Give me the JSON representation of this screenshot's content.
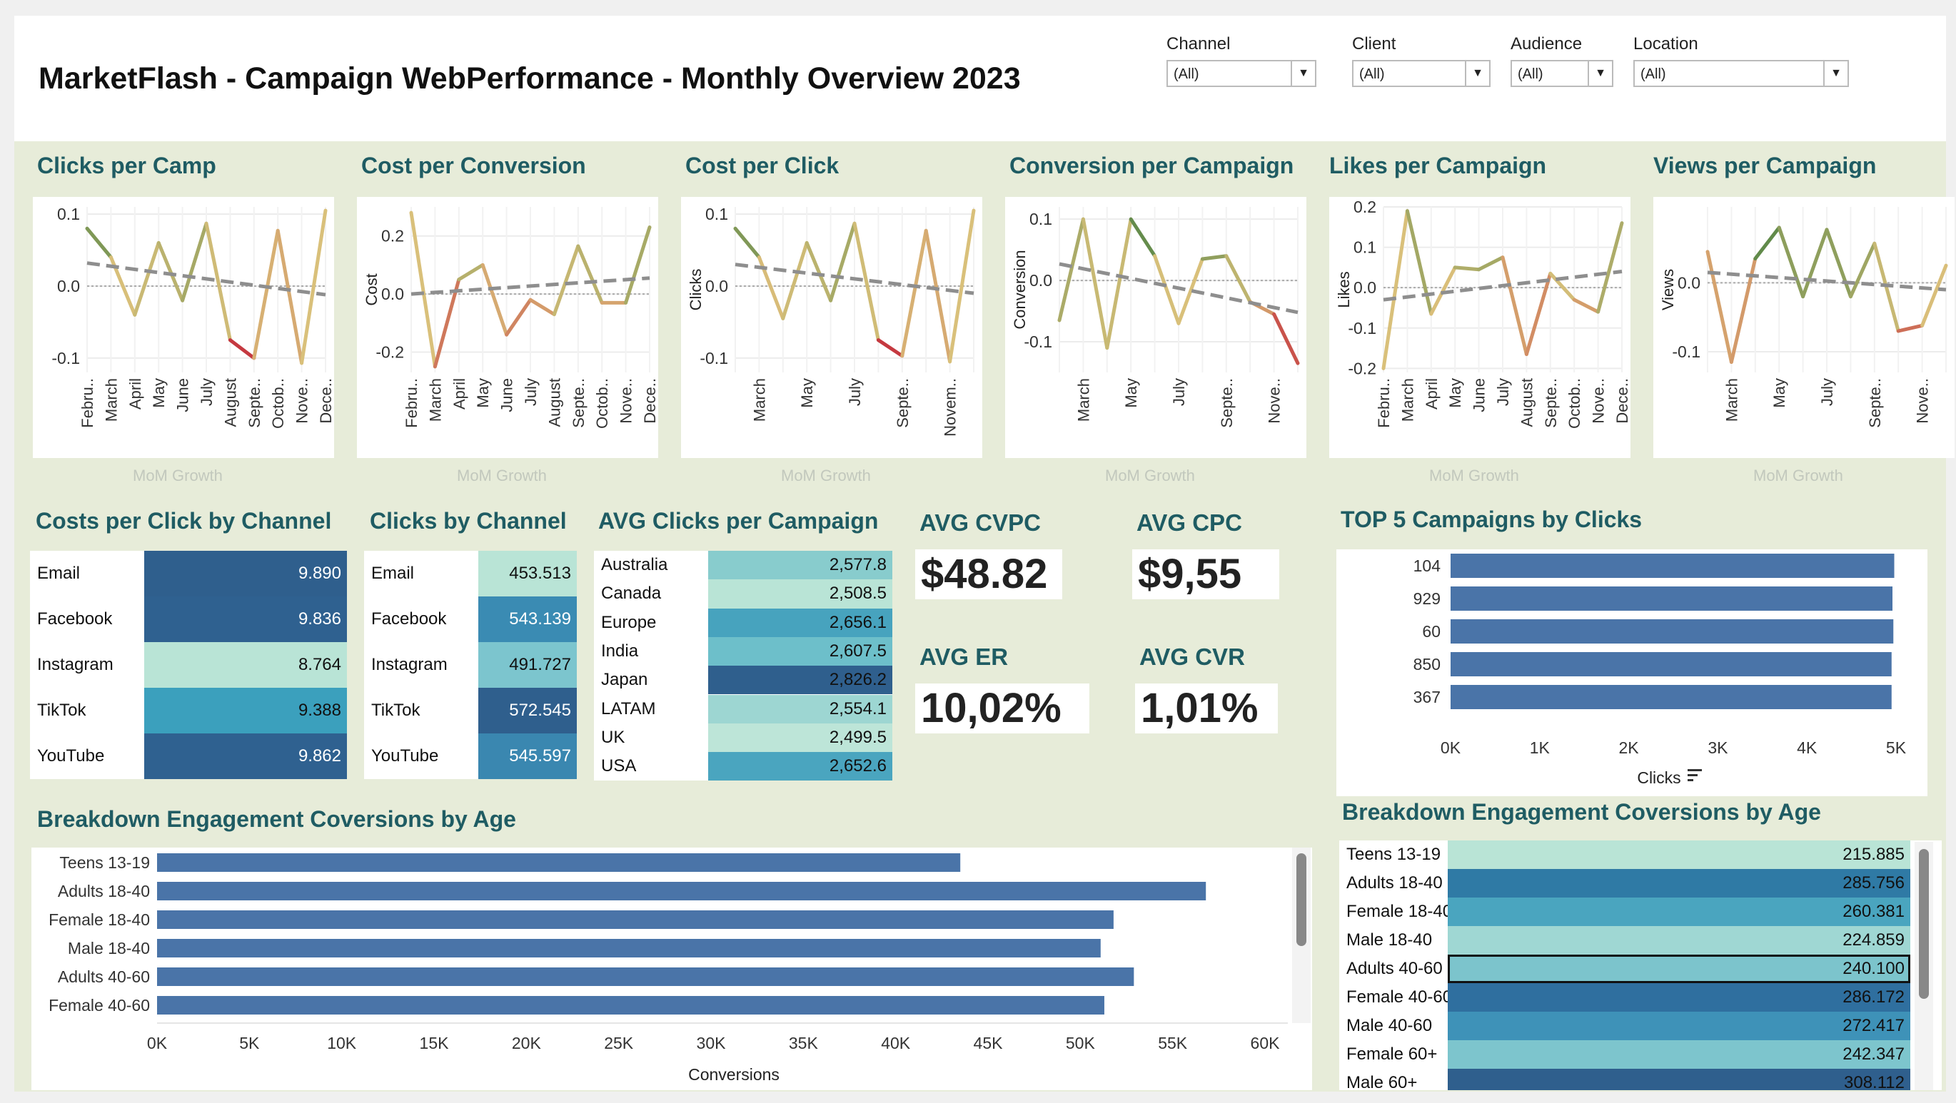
{
  "title": "MarketFlash - Campaign WebPerformance - Monthly Overview 2023",
  "filters": [
    {
      "label": "Channel",
      "value": "(All)"
    },
    {
      "label": "Client",
      "value": "(All)"
    },
    {
      "label": "Audience",
      "value": "(All)"
    },
    {
      "label": "Location",
      "value": "(All)"
    }
  ],
  "mini_charts_footer": "MoM Growth",
  "chart_data": [
    {
      "type": "line",
      "title": "Clicks per Camp",
      "ylabel": "",
      "ylim": [
        -0.12,
        0.11
      ],
      "yticks": [
        0.1,
        0.0,
        -0.1
      ],
      "ytick_labels": [
        "0.1",
        "0.0",
        "-0.1"
      ],
      "x": [
        "Febru..",
        "March",
        "April",
        "May",
        "June",
        "July",
        "August",
        "Septe..",
        "Octob..",
        "Nove..",
        "Dece.."
      ],
      "values": [
        0.08,
        0.04,
        -0.04,
        0.06,
        -0.02,
        0.087,
        -0.075,
        -0.1,
        0.077,
        -0.107,
        0.105
      ],
      "trend": [
        0.032,
        -0.012
      ]
    },
    {
      "type": "line",
      "title": "Cost per Conversion",
      "ylabel": "Cost",
      "ylim": [
        -0.27,
        0.3
      ],
      "yticks": [
        0.2,
        0.0,
        -0.2
      ],
      "ytick_labels": [
        "0.2",
        "0.0",
        "-0.2"
      ],
      "x": [
        "Febru..",
        "March",
        "April",
        "May",
        "June",
        "July",
        "August",
        "Septe..",
        "Octob..",
        "Nove..",
        "Dece.."
      ],
      "values": [
        0.28,
        -0.25,
        0.05,
        0.1,
        -0.14,
        -0.02,
        -0.07,
        0.165,
        -0.03,
        -0.03,
        0.23
      ],
      "trend": [
        0.0,
        0.055
      ]
    },
    {
      "type": "line",
      "title": "Cost per Click",
      "ylabel": "Clicks",
      "ylim": [
        -0.12,
        0.11
      ],
      "yticks": [
        0.1,
        0.0,
        -0.1
      ],
      "ytick_labels": [
        "0.1",
        "0.0",
        "-0.1"
      ],
      "x": [
        "",
        "March",
        "",
        "May",
        "",
        "July",
        "",
        "Septe..",
        "",
        "Novem..",
        ""
      ],
      "values": [
        0.08,
        0.04,
        -0.045,
        0.06,
        -0.02,
        0.087,
        -0.075,
        -0.097,
        0.077,
        -0.105,
        0.105
      ],
      "trend": [
        0.03,
        -0.01
      ]
    },
    {
      "type": "line",
      "title": "Conversion per Campaign",
      "ylabel": "Conversion",
      "ylim": [
        -0.15,
        0.12
      ],
      "yticks": [
        0.1,
        0.0,
        -0.1
      ],
      "ytick_labels": [
        "0.1",
        "0.0",
        "-0.1"
      ],
      "x": [
        "",
        "March",
        "",
        "May",
        "",
        "July",
        "",
        "Septe..",
        "",
        "Nove..",
        ""
      ],
      "values": [
        -0.065,
        0.1,
        -0.11,
        0.1,
        0.04,
        -0.07,
        0.035,
        0.04,
        -0.035,
        -0.055,
        -0.135
      ],
      "trend": [
        0.027,
        -0.052
      ]
    },
    {
      "type": "line",
      "title": "Likes per Campaign",
      "ylabel": "Likes",
      "ylim": [
        -0.21,
        0.2
      ],
      "yticks": [
        0.2,
        0.1,
        0.0,
        -0.1,
        -0.2
      ],
      "ytick_labels": [
        "0.2",
        "0.1",
        "0.0",
        "-0.1",
        "-0.2"
      ],
      "x": [
        "Febru..",
        "March",
        "April",
        "May",
        "June",
        "July",
        "August",
        "Septe..",
        "Octob..",
        "Nove..",
        "Dece.."
      ],
      "values": [
        -0.2,
        0.19,
        -0.065,
        0.05,
        0.045,
        0.075,
        -0.165,
        0.035,
        -0.03,
        -0.06,
        0.16
      ],
      "trend": [
        -0.03,
        0.04
      ]
    },
    {
      "type": "line",
      "title": "Views per Campaign",
      "ylabel": "Views",
      "ylim": [
        -0.13,
        0.11
      ],
      "yticks": [
        0.0,
        -0.1
      ],
      "ytick_labels": [
        "0.0",
        "-0.1"
      ],
      "x": [
        "",
        "March",
        "",
        "May",
        "",
        "July",
        "",
        "Septe..",
        "",
        "Nove..",
        ""
      ],
      "values": [
        0.045,
        -0.115,
        0.035,
        0.08,
        -0.02,
        0.077,
        -0.02,
        0.057,
        -0.07,
        -0.062,
        0.025
      ],
      "trend": [
        0.015,
        -0.01
      ]
    }
  ],
  "cost_per_click_by_channel": {
    "title": "Costs per Click by Channel",
    "rows": [
      {
        "label": "Email",
        "value": "9.890",
        "color": "#2f5f8d"
      },
      {
        "label": "Facebook",
        "value": "9.836",
        "color": "#2f6190"
      },
      {
        "label": "Instagram",
        "value": "8.764",
        "color": "#b9e4d6"
      },
      {
        "label": "TikTok",
        "value": "9.388",
        "color": "#3ba0bd"
      },
      {
        "label": "YouTube",
        "value": "9.862",
        "color": "#2f6190"
      }
    ]
  },
  "clicks_by_channel": {
    "title": "Clicks by Channel",
    "rows": [
      {
        "label": "Email",
        "value": "453.513",
        "color": "#b9e4d6"
      },
      {
        "label": "Facebook",
        "value": "543.139",
        "color": "#3a8bb3"
      },
      {
        "label": "Instagram",
        "value": "491.727",
        "color": "#7cc5ce"
      },
      {
        "label": "TikTok",
        "value": "572.545",
        "color": "#2f5f8d"
      },
      {
        "label": "YouTube",
        "value": "545.597",
        "color": "#3a87b0"
      }
    ]
  },
  "avg_clicks_per_campaign": {
    "title": "AVG Clicks per Campaign",
    "rows": [
      {
        "label": "Australia",
        "value": "2,577.8",
        "color": "#88cccd"
      },
      {
        "label": "Canada",
        "value": "2,508.5",
        "color": "#b9e4d6"
      },
      {
        "label": "Europe",
        "value": "2,656.1",
        "color": "#47a3be"
      },
      {
        "label": "India",
        "value": "2,607.5",
        "color": "#6dbfca"
      },
      {
        "label": "Japan",
        "value": "2,826.2",
        "color": "#2f5f8d"
      },
      {
        "label": "LATAM",
        "value": "2,554.1",
        "color": "#9dd6d2"
      },
      {
        "label": "UK",
        "value": "2,499.5",
        "color": "#bde5d8"
      },
      {
        "label": "USA",
        "value": "2,652.6",
        "color": "#4aa5bf"
      }
    ]
  },
  "kpis": [
    {
      "title": "AVG CVPC",
      "value": "$48.82"
    },
    {
      "title": "AVG CPC",
      "value": "$9,55"
    },
    {
      "title": "AVG ER",
      "value": "10,02%"
    },
    {
      "title": "AVG CVR",
      "value": "1,01%"
    }
  ],
  "top5": {
    "title": "TOP 5 Campaigns by Clicks",
    "xlabel": "Clicks",
    "ticks": [
      "0K",
      "1K",
      "2K",
      "3K",
      "4K",
      "5K"
    ],
    "xlim": [
      0,
      5000
    ],
    "categories": [
      "104",
      "929",
      "60",
      "850",
      "367"
    ],
    "values": [
      4980,
      4960,
      4970,
      4950,
      4950
    ],
    "bar_color": "#4a74a8"
  },
  "age_bar": {
    "title": "Breakdown Engagement Coversions by Age",
    "xlabel": "Conversions",
    "ticks": [
      "0K",
      "5K",
      "10K",
      "15K",
      "20K",
      "25K",
      "30K",
      "35K",
      "40K",
      "45K",
      "50K",
      "55K",
      "60K"
    ],
    "xlim": [
      0,
      60000
    ],
    "categories": [
      "Teens 13-19",
      "Adults 18-40",
      "Female 18-40",
      "Male 18-40",
      "Adults 40-60",
      "Female 40-60"
    ],
    "values": [
      43500,
      56800,
      51800,
      51100,
      52900,
      51300
    ],
    "bar_color": "#4a74a8"
  },
  "age_table": {
    "title": "Breakdown Engagement Coversions by Age",
    "rows": [
      {
        "label": "Teens 13-19",
        "value": "215.885",
        "color": "#b9e4d6"
      },
      {
        "label": "Adults 18-40",
        "value": "285.756",
        "color": "#2f7aa5"
      },
      {
        "label": "Female 18-40",
        "value": "260.381",
        "color": "#4aa5bf"
      },
      {
        "label": "Male 18-40",
        "value": "224.859",
        "color": "#9fd7d3"
      },
      {
        "label": "Adults 40-60",
        "value": "240.100",
        "color": "#7cc4cc"
      },
      {
        "label": "Female 40-60",
        "value": "286.172",
        "color": "#2f6f9f"
      },
      {
        "label": "Male 40-60",
        "value": "272.417",
        "color": "#3e92b8"
      },
      {
        "label": "Female 60+",
        "value": "242.347",
        "color": "#7dc5cd"
      },
      {
        "label": "Male 60+",
        "value": "308.112",
        "color": "#2f5f8d"
      }
    ]
  }
}
